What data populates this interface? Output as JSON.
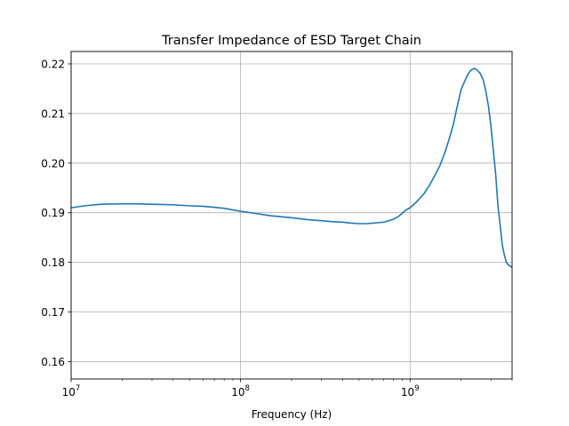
{
  "chart_data": {
    "type": "line",
    "title": "Transfer Impedance of ESD Target Chain",
    "xlabel": "Frequency (Hz)",
    "ylabel": "",
    "xscale": "log",
    "xlim": [
      10000000,
      4000000000
    ],
    "ylim": [
      0.1565,
      0.2225
    ],
    "grid": true,
    "x_ticks": [
      {
        "value": 10000000,
        "base": "10",
        "exp": "7"
      },
      {
        "value": 100000000,
        "base": "10",
        "exp": "8"
      },
      {
        "value": 1000000000,
        "base": "10",
        "exp": "9"
      }
    ],
    "y_ticks": [
      {
        "value": 0.16,
        "label": "0.16"
      },
      {
        "value": 0.17,
        "label": "0.17"
      },
      {
        "value": 0.18,
        "label": "0.18"
      },
      {
        "value": 0.19,
        "label": "0.19"
      },
      {
        "value": 0.2,
        "label": "0.20"
      },
      {
        "value": 0.21,
        "label": "0.21"
      },
      {
        "value": 0.22,
        "label": "0.22"
      }
    ],
    "series": [
      {
        "color": "#1f77b4",
        "x": [
          10000000,
          12000000,
          15000000,
          20000000,
          25000000,
          30000000,
          40000000,
          50000000,
          60000000,
          70000000,
          80000000,
          100000000,
          120000000,
          150000000,
          200000000,
          250000000,
          300000000,
          350000000,
          400000000,
          450000000,
          500000000,
          550000000,
          600000000,
          650000000,
          700000000,
          750000000,
          800000000,
          850000000,
          900000000,
          950000000,
          1000000000,
          1100000000,
          1200000000,
          1300000000,
          1400000000,
          1500000000,
          1600000000,
          1700000000,
          1800000000,
          1900000000,
          2000000000,
          2100000000,
          2200000000,
          2300000000,
          2400000000,
          2500000000,
          2600000000,
          2700000000,
          2800000000,
          2900000000,
          3000000000,
          3100000000,
          3200000000,
          3300000000,
          3400000000,
          3500000000,
          3600000000,
          3700000000,
          3800000000,
          3900000000,
          4000000000
        ],
        "y": [
          0.191,
          0.1914,
          0.1917,
          0.1918,
          0.1918,
          0.1917,
          0.1916,
          0.1914,
          0.1913,
          0.1911,
          0.1909,
          0.1903,
          0.1899,
          0.1894,
          0.189,
          0.1886,
          0.1884,
          0.1882,
          0.1881,
          0.1879,
          0.1878,
          0.1878,
          0.1879,
          0.188,
          0.1881,
          0.1884,
          0.1887,
          0.1892,
          0.1899,
          0.1906,
          0.191,
          0.1923,
          0.1937,
          0.1955,
          0.1975,
          0.1995,
          0.202,
          0.2048,
          0.2078,
          0.2115,
          0.2148,
          0.2165,
          0.218,
          0.2188,
          0.2191,
          0.2187,
          0.218,
          0.2168,
          0.2145,
          0.2115,
          0.2075,
          0.2025,
          0.1978,
          0.1915,
          0.1875,
          0.1835,
          0.1815,
          0.18,
          0.1795,
          0.1792,
          0.179
        ]
      }
    ]
  }
}
